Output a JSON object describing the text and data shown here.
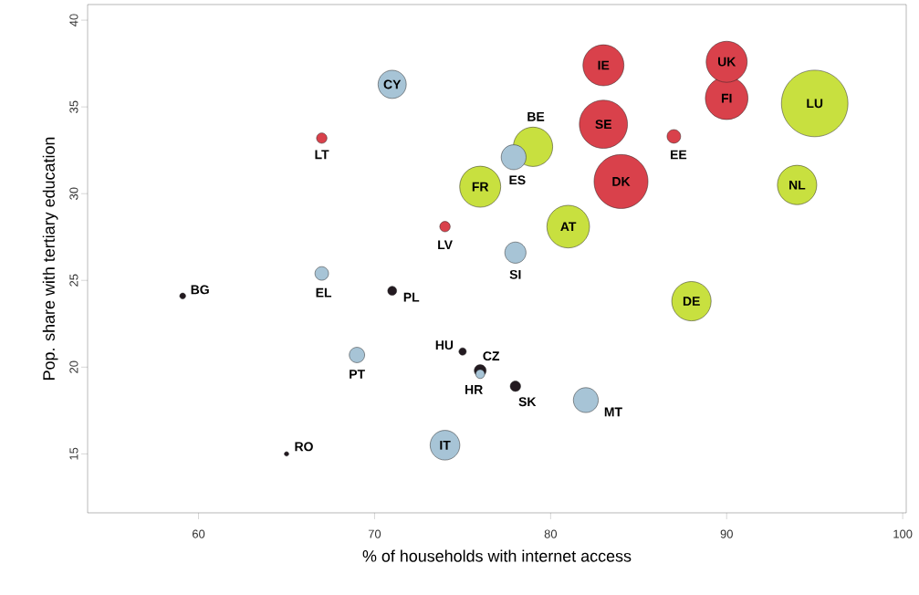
{
  "chart_data": {
    "type": "bubble",
    "xlabel": "% of households with internet access",
    "ylabel": "Pop. share with tertiary education",
    "xlim": [
      53.7,
      100.2
    ],
    "ylim": [
      11.6,
      40.9
    ],
    "xticks": [
      60,
      70,
      80,
      90,
      100
    ],
    "yticks": [
      15,
      20,
      25,
      30,
      35,
      40
    ],
    "grid": false,
    "series": [
      {
        "color": "#231a20",
        "x": [
          59.1,
          71,
          75,
          76,
          78,
          65
        ],
        "values": [
          24.1,
          24.4,
          20.9,
          19.8,
          18.9,
          15.0
        ],
        "sizes": [
          0.011,
          0.025,
          0.017,
          0.044,
          0.034,
          0.006
        ]
      },
      {
        "color": "#c8e03f",
        "x": [
          79,
          76,
          81,
          88,
          94,
          95
        ],
        "values": [
          32.7,
          30.4,
          28.1,
          23.8,
          30.5,
          35.2
        ],
        "sizes": [
          0.37,
          0.4,
          0.43,
          0.37,
          0.37,
          1
        ]
      },
      {
        "color": "#d9414b",
        "x": [
          67,
          74,
          87,
          83,
          90,
          83,
          84,
          90
        ],
        "values": [
          33.2,
          28.1,
          33.3,
          37.4,
          35.5,
          34.0,
          30.7,
          37.6
        ],
        "sizes": [
          0.034,
          0.034,
          0.056,
          0.4,
          0.43,
          0.54,
          0.67,
          0.4
        ]
      },
      {
        "color": "#a7c4d6",
        "x": [
          71,
          77.9,
          78,
          67,
          69,
          76,
          82,
          74
        ],
        "values": [
          36.3,
          32.1,
          26.6,
          25.4,
          20.7,
          19.6,
          18.1,
          15.5
        ],
        "sizes": [
          0.2,
          0.16,
          0.12,
          0.056,
          0.069,
          0.025,
          0.16,
          0.22
        ]
      }
    ],
    "annotations": [
      {
        "text": "BG",
        "x": 59.1,
        "y": 24.1
      },
      {
        "text": "PL",
        "x": 71,
        "y": 24.4
      },
      {
        "text": "HU",
        "x": 75,
        "y": 20.9
      },
      {
        "text": "CZ",
        "x": 76,
        "y": 19.8
      },
      {
        "text": "SK",
        "x": 78,
        "y": 18.9
      },
      {
        "text": "RO",
        "x": 65,
        "y": 15.0
      },
      {
        "text": "BE",
        "x": 79,
        "y": 32.7
      },
      {
        "text": "FR",
        "x": 76,
        "y": 30.4
      },
      {
        "text": "AT",
        "x": 81,
        "y": 28.1
      },
      {
        "text": "DE",
        "x": 88,
        "y": 23.8
      },
      {
        "text": "NL",
        "x": 94,
        "y": 30.5
      },
      {
        "text": "LU",
        "x": 95,
        "y": 35.2
      },
      {
        "text": "LT",
        "x": 67,
        "y": 33.2
      },
      {
        "text": "LV",
        "x": 74,
        "y": 28.1
      },
      {
        "text": "EE",
        "x": 87,
        "y": 33.3
      },
      {
        "text": "IE",
        "x": 83,
        "y": 37.4
      },
      {
        "text": "FI",
        "x": 90,
        "y": 35.5
      },
      {
        "text": "SE",
        "x": 83,
        "y": 34.0
      },
      {
        "text": "DK",
        "x": 84,
        "y": 30.7
      },
      {
        "text": "UK",
        "x": 90,
        "y": 37.6
      },
      {
        "text": "CY",
        "x": 71,
        "y": 36.3
      },
      {
        "text": "ES",
        "x": 77.9,
        "y": 32.1
      },
      {
        "text": "SI",
        "x": 78,
        "y": 26.6
      },
      {
        "text": "EL",
        "x": 67,
        "y": 25.4
      },
      {
        "text": "PT",
        "x": 69,
        "y": 20.7
      },
      {
        "text": "HR",
        "x": 76,
        "y": 19.6
      },
      {
        "text": "MT",
        "x": 82,
        "y": 18.1
      },
      {
        "text": "IT",
        "x": 74,
        "y": 15.5
      }
    ]
  }
}
